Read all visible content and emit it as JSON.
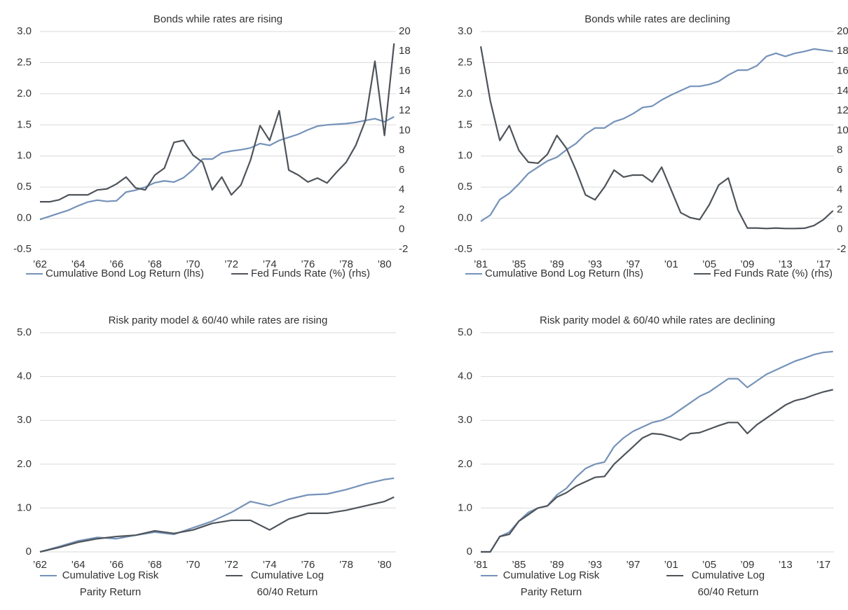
{
  "chart_data": [
    {
      "type": "line",
      "title": "Bonds while rates are rising",
      "x": [
        1962,
        1962.5,
        1963,
        1963.5,
        1964,
        1964.5,
        1965,
        1965.5,
        1966,
        1966.5,
        1967,
        1967.5,
        1968,
        1968.5,
        1969,
        1969.5,
        1970,
        1970.5,
        1971,
        1971.5,
        1972,
        1972.5,
        1973,
        1973.5,
        1974,
        1974.5,
        1975,
        1975.5,
        1976,
        1976.5,
        1977,
        1977.5,
        1978,
        1978.5,
        1979,
        1979.5,
        1980,
        1980.5
      ],
      "xlim": [
        1962,
        1980.6
      ],
      "xticks": [
        {
          "value": 1962,
          "label": "’62"
        },
        {
          "value": 1964,
          "label": "’64"
        },
        {
          "value": 1966,
          "label": "’66"
        },
        {
          "value": 1968,
          "label": "’68"
        },
        {
          "value": 1970,
          "label": "’70"
        },
        {
          "value": 1972,
          "label": "’72"
        },
        {
          "value": 1974,
          "label": "’74"
        },
        {
          "value": 1976,
          "label": "’76"
        },
        {
          "value": 1978,
          "label": "’78"
        },
        {
          "value": 1980,
          "label": "’80"
        }
      ],
      "ylim": [
        -0.5,
        3
      ],
      "yticks": [
        {
          "value": 3,
          "label": "3.0"
        },
        2.5,
        {
          "value": 2,
          "label": "2.0"
        },
        1.5,
        {
          "value": 1,
          "label": "1.0"
        },
        0.5,
        {
          "value": 0,
          "label": "0.0"
        },
        -0.5
      ],
      "y2lim": [
        -2,
        20
      ],
      "y2ticks": [
        20,
        18,
        16,
        14,
        12,
        10,
        8,
        6,
        4,
        2,
        0,
        -2
      ],
      "grid": true,
      "series": [
        {
          "name": "Cumulative Bond Log Return (lhs)",
          "color": "#7592b9",
          "values": [
            -0.02,
            0.03,
            0.08,
            0.13,
            0.2,
            0.26,
            0.29,
            0.27,
            0.28,
            0.42,
            0.45,
            0.5,
            0.57,
            0.6,
            0.58,
            0.65,
            0.78,
            0.95,
            0.95,
            1.05,
            1.08,
            1.1,
            1.13,
            1.2,
            1.17,
            1.25,
            1.3,
            1.35,
            1.42,
            1.48,
            1.5,
            1.51,
            1.52,
            1.54,
            1.57,
            1.6,
            1.55,
            1.63
          ]
        },
        {
          "name": "Fed Funds Rate (%) (rhs)",
          "color": "#4e545a",
          "axis": "y2",
          "values": [
            2.8,
            2.8,
            3.0,
            3.5,
            3.5,
            3.5,
            4.0,
            4.1,
            4.6,
            5.3,
            4.2,
            4.0,
            5.5,
            6.2,
            8.8,
            9.0,
            7.5,
            6.8,
            4.0,
            5.3,
            3.5,
            4.5,
            7.0,
            10.5,
            9.0,
            12.0,
            6.0,
            5.5,
            4.8,
            5.2,
            4.7,
            5.8,
            6.8,
            8.5,
            11.0,
            17.0,
            9.5,
            18.8
          ]
        }
      ]
    },
    {
      "type": "line",
      "title": "Bonds while rates are declining",
      "x": [
        1981,
        1982,
        1983,
        1984,
        1985,
        1986,
        1987,
        1988,
        1989,
        1990,
        1991,
        1992,
        1993,
        1994,
        1995,
        1996,
        1997,
        1998,
        1999,
        2000,
        2001,
        2002,
        2003,
        2004,
        2005,
        2006,
        2007,
        2008,
        2009,
        2010,
        2011,
        2012,
        2013,
        2014,
        2015,
        2016,
        2017,
        2018
      ],
      "xlim": [
        1981,
        2018.1
      ],
      "xticks": [
        {
          "value": 1981,
          "label": "’81"
        },
        {
          "value": 1985,
          "label": "’85"
        },
        {
          "value": 1989,
          "label": "’89"
        },
        {
          "value": 1993,
          "label": "’93"
        },
        {
          "value": 1997,
          "label": "’97"
        },
        {
          "value": 2001,
          "label": "’01"
        },
        {
          "value": 2005,
          "label": "’05"
        },
        {
          "value": 2009,
          "label": "’09"
        },
        {
          "value": 2013,
          "label": "’13"
        },
        {
          "value": 2017,
          "label": "’17"
        }
      ],
      "ylim": [
        -0.5,
        3
      ],
      "yticks": [
        {
          "value": 3,
          "label": "3.0"
        },
        2.5,
        {
          "value": 2,
          "label": "2.0"
        },
        1.5,
        {
          "value": 1,
          "label": "1.0"
        },
        0.5,
        {
          "value": 0,
          "label": "0.0"
        },
        -0.5
      ],
      "y2lim": [
        -2,
        20
      ],
      "y2ticks": [
        20,
        18,
        16,
        14,
        12,
        10,
        8,
        6,
        4,
        2,
        0,
        -2
      ],
      "grid": true,
      "series": [
        {
          "name": "Cumulative Bond Log Return (lhs)",
          "color": "#7592b9",
          "values": [
            -0.05,
            0.05,
            0.3,
            0.4,
            0.55,
            0.72,
            0.82,
            0.92,
            0.98,
            1.1,
            1.2,
            1.35,
            1.45,
            1.45,
            1.55,
            1.6,
            1.68,
            1.78,
            1.8,
            1.9,
            1.98,
            2.05,
            2.12,
            2.12,
            2.15,
            2.2,
            2.3,
            2.38,
            2.38,
            2.45,
            2.6,
            2.65,
            2.6,
            2.65,
            2.68,
            2.72,
            2.7,
            2.68
          ]
        },
        {
          "name": "Fed Funds Rate (%) (rhs)",
          "color": "#4e545a",
          "axis": "y2",
          "values": [
            18.5,
            13,
            9,
            10.5,
            8,
            6.8,
            6.7,
            7.6,
            9.5,
            8.2,
            6,
            3.5,
            3,
            4.3,
            6,
            5.3,
            5.5,
            5.5,
            4.8,
            6.3,
            4,
            1.7,
            1.2,
            1.0,
            2.5,
            4.5,
            5.2,
            2.0,
            0.15,
            0.15,
            0.1,
            0.15,
            0.1,
            0.1,
            0.13,
            0.4,
            1.0,
            1.9
          ]
        }
      ]
    },
    {
      "type": "line",
      "title": "Risk parity model & 60/40 while rates are rising",
      "x": [
        1962,
        1963,
        1964,
        1965,
        1966,
        1967,
        1968,
        1969,
        1970,
        1971,
        1972,
        1973,
        1974,
        1975,
        1976,
        1977,
        1978,
        1979,
        1980,
        1980.5
      ],
      "xlim": [
        1962,
        1980.6
      ],
      "xticks": [
        {
          "value": 1962,
          "label": "’62"
        },
        {
          "value": 1964,
          "label": "’64"
        },
        {
          "value": 1966,
          "label": "’66"
        },
        {
          "value": 1968,
          "label": "’68"
        },
        {
          "value": 1970,
          "label": "’70"
        },
        {
          "value": 1972,
          "label": "’72"
        },
        {
          "value": 1974,
          "label": "’74"
        },
        {
          "value": 1976,
          "label": "’76"
        },
        {
          "value": 1978,
          "label": "’78"
        },
        {
          "value": 1980,
          "label": "’80"
        }
      ],
      "ylim": [
        0,
        5
      ],
      "yticks": [
        {
          "value": 5,
          "label": "5.0"
        },
        {
          "value": 4,
          "label": "4.0"
        },
        {
          "value": 3,
          "label": "3.0"
        },
        {
          "value": 2,
          "label": "2.0"
        },
        {
          "value": 1,
          "label": "1.0"
        },
        0
      ],
      "grid": true,
      "series": [
        {
          "name": "Cumulative Log Risk Parity Return",
          "color": "#7592b9",
          "values": [
            0.0,
            0.12,
            0.25,
            0.33,
            0.3,
            0.38,
            0.45,
            0.4,
            0.55,
            0.7,
            0.9,
            1.15,
            1.05,
            1.2,
            1.3,
            1.32,
            1.42,
            1.55,
            1.65,
            1.68
          ]
        },
        {
          "name": "Cumulative Log 60/40 Return",
          "color": "#4e545a",
          "values": [
            0.0,
            0.1,
            0.22,
            0.3,
            0.35,
            0.38,
            0.48,
            0.42,
            0.5,
            0.65,
            0.72,
            0.72,
            0.5,
            0.75,
            0.88,
            0.88,
            0.95,
            1.05,
            1.15,
            1.25
          ]
        }
      ]
    },
    {
      "type": "line",
      "title": "Risk parity model & 60/40 while rates are declining",
      "x": [
        1981,
        1982,
        1983,
        1984,
        1985,
        1986,
        1987,
        1988,
        1989,
        1990,
        1991,
        1992,
        1993,
        1994,
        1995,
        1996,
        1997,
        1998,
        1999,
        2000,
        2001,
        2002,
        2003,
        2004,
        2005,
        2006,
        2007,
        2008,
        2009,
        2010,
        2011,
        2012,
        2013,
        2014,
        2015,
        2016,
        2017,
        2018
      ],
      "xlim": [
        1981,
        2018.1
      ],
      "xticks": [
        {
          "value": 1981,
          "label": "’81"
        },
        {
          "value": 1985,
          "label": "’85"
        },
        {
          "value": 1989,
          "label": "’89"
        },
        {
          "value": 1993,
          "label": "’93"
        },
        {
          "value": 1997,
          "label": "’97"
        },
        {
          "value": 2001,
          "label": "’01"
        },
        {
          "value": 2005,
          "label": "’05"
        },
        {
          "value": 2009,
          "label": "’09"
        },
        {
          "value": 2013,
          "label": "’13"
        },
        {
          "value": 2017,
          "label": "’17"
        }
      ],
      "ylim": [
        0,
        5
      ],
      "yticks": [
        {
          "value": 5,
          "label": "5.0"
        },
        {
          "value": 4,
          "label": "4.0"
        },
        {
          "value": 3,
          "label": "3.0"
        },
        {
          "value": 2,
          "label": "2.0"
        },
        {
          "value": 1,
          "label": "1.0"
        },
        0
      ],
      "grid": true,
      "series": [
        {
          "name": "Cumulative Log Risk Parity Return",
          "color": "#7592b9",
          "values": [
            0,
            0.0,
            0.35,
            0.45,
            0.7,
            0.9,
            1.0,
            1.05,
            1.3,
            1.45,
            1.7,
            1.9,
            2.0,
            2.05,
            2.4,
            2.6,
            2.75,
            2.85,
            2.95,
            3.0,
            3.1,
            3.25,
            3.4,
            3.55,
            3.65,
            3.8,
            3.95,
            3.95,
            3.75,
            3.9,
            4.05,
            4.15,
            4.25,
            4.35,
            4.42,
            4.5,
            4.55,
            4.57
          ]
        },
        {
          "name": "Cumulative Log 60/40 Return",
          "color": "#4e545a",
          "values": [
            0,
            0.0,
            0.35,
            0.4,
            0.7,
            0.85,
            1.0,
            1.05,
            1.25,
            1.35,
            1.5,
            1.6,
            1.7,
            1.72,
            2.0,
            2.2,
            2.4,
            2.6,
            2.7,
            2.68,
            2.62,
            2.55,
            2.7,
            2.72,
            2.8,
            2.88,
            2.95,
            2.95,
            2.7,
            2.9,
            3.05,
            3.2,
            3.35,
            3.45,
            3.5,
            3.58,
            3.65,
            3.7
          ]
        }
      ]
    }
  ]
}
